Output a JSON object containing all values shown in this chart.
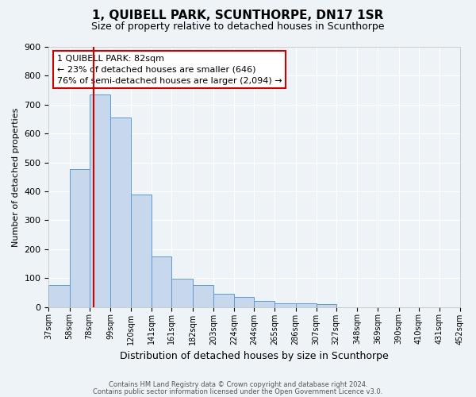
{
  "title": "1, QUIBELL PARK, SCUNTHORPE, DN17 1SR",
  "subtitle": "Size of property relative to detached houses in Scunthorpe",
  "xlabel": "Distribution of detached houses by size in Scunthorpe",
  "ylabel": "Number of detached properties",
  "footer_line1": "Contains HM Land Registry data © Crown copyright and database right 2024.",
  "footer_line2": "Contains public sector information licensed under the Open Government Licence v3.0.",
  "bar_edges": [
    37,
    58,
    78,
    99,
    120,
    141,
    161,
    182,
    203,
    224,
    244,
    265,
    286,
    307,
    327,
    348,
    369,
    390,
    410,
    431,
    452
  ],
  "bar_heights": [
    75,
    478,
    736,
    655,
    390,
    175,
    97,
    75,
    47,
    35,
    20,
    12,
    12,
    10,
    0,
    0,
    0,
    0,
    0,
    0,
    5
  ],
  "bar_color": "#c8d8ec",
  "bar_edge_color": "#5b9bd5",
  "red_line_x": 82,
  "annotation_title": "1 QUIBELL PARK: 82sqm",
  "annotation_line1": "← 23% of detached houses are smaller (646)",
  "annotation_line2": "76% of semi-detached houses are larger (2,094) →",
  "annotation_box_color": "#ffffff",
  "annotation_box_edge": "#cc0000",
  "red_line_color": "#cc0000",
  "ylim": [
    0,
    900
  ],
  "yticks": [
    0,
    100,
    200,
    300,
    400,
    500,
    600,
    700,
    800,
    900
  ],
  "bg_color": "#eef3f8",
  "plot_bg_color": "#eef3f8",
  "grid_color": "#ffffff",
  "tick_labels": [
    "37sqm",
    "58sqm",
    "78sqm",
    "99sqm",
    "120sqm",
    "141sqm",
    "161sqm",
    "182sqm",
    "203sqm",
    "224sqm",
    "244sqm",
    "265sqm",
    "286sqm",
    "307sqm",
    "327sqm",
    "348sqm",
    "369sqm",
    "390sqm",
    "410sqm",
    "431sqm",
    "452sqm"
  ]
}
